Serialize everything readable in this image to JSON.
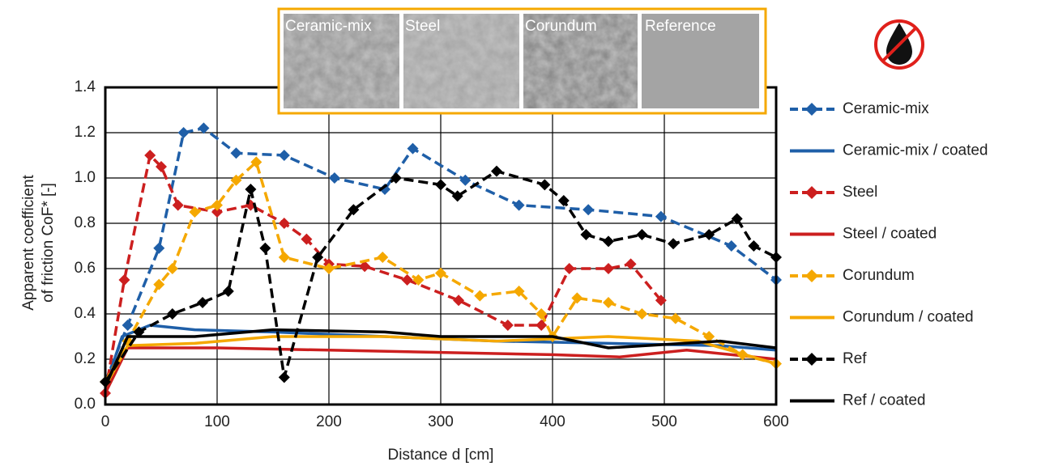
{
  "chart_data": {
    "type": "line",
    "ylabel": [
      "Apparent coefficient",
      "of friction CoF* [-]"
    ],
    "xlabel": "Distance d [cm]",
    "image_labels": [
      "Ceramic-mix",
      "Steel",
      "Corundum",
      "Reference"
    ],
    "xlim": [
      0,
      600
    ],
    "xticks": [
      0,
      100,
      200,
      300,
      400,
      500,
      600
    ],
    "ylim": [
      0,
      1.4
    ],
    "yticks": [
      {
        "value": 0,
        "label": "0.0"
      },
      0.2,
      0.4,
      0.6,
      0.8,
      {
        "value": 1,
        "label": "1.0"
      },
      1.2,
      1.4
    ],
    "grid": true,
    "series": [
      {
        "name": "Ceramic-mix",
        "color": "#1f5fa8",
        "dashed": true,
        "markers": true,
        "x": [
          0,
          20,
          48,
          70,
          88,
          117,
          160,
          205,
          250,
          275,
          322,
          370,
          432,
          497,
          560,
          600
        ],
        "values": [
          0.1,
          0.35,
          0.69,
          1.2,
          1.22,
          1.11,
          1.1,
          1.0,
          0.95,
          1.13,
          0.99,
          0.88,
          0.86,
          0.83,
          0.7,
          0.55
        ]
      },
      {
        "name": "Ceramic-mix / coated",
        "color": "#1f5fa8",
        "dashed": false,
        "markers": false,
        "x": [
          0,
          15,
          40,
          80,
          150,
          250,
          350,
          450,
          550,
          600
        ],
        "values": [
          0.08,
          0.3,
          0.35,
          0.33,
          0.32,
          0.3,
          0.28,
          0.27,
          0.26,
          0.24
        ]
      },
      {
        "name": "Steel",
        "color": "#cc1f1f",
        "dashed": true,
        "markers": true,
        "x": [
          0,
          17,
          40,
          50,
          65,
          100,
          130,
          160,
          180,
          200,
          232,
          270,
          316,
          360,
          390,
          415,
          450,
          470,
          497
        ],
        "values": [
          0.05,
          0.55,
          1.1,
          1.05,
          0.88,
          0.85,
          0.88,
          0.8,
          0.73,
          0.62,
          0.61,
          0.55,
          0.46,
          0.35,
          0.35,
          0.6,
          0.6,
          0.62,
          0.46
        ]
      },
      {
        "name": "Steel / coated",
        "color": "#cc1f1f",
        "dashed": false,
        "markers": false,
        "x": [
          0,
          20,
          100,
          200,
          300,
          400,
          460,
          520,
          600
        ],
        "values": [
          0.05,
          0.25,
          0.25,
          0.24,
          0.23,
          0.22,
          0.21,
          0.24,
          0.2
        ]
      },
      {
        "name": "Corundum",
        "color": "#f5a800",
        "dashed": true,
        "markers": true,
        "x": [
          0,
          20,
          48,
          60,
          80,
          100,
          117,
          135,
          160,
          200,
          248,
          280,
          300,
          335,
          370,
          390,
          400,
          422,
          450,
          480,
          510,
          540,
          570,
          600
        ],
        "values": [
          0.1,
          0.28,
          0.53,
          0.6,
          0.85,
          0.88,
          0.99,
          1.07,
          0.65,
          0.6,
          0.65,
          0.55,
          0.58,
          0.48,
          0.5,
          0.4,
          0.3,
          0.47,
          0.45,
          0.4,
          0.38,
          0.3,
          0.22,
          0.18
        ]
      },
      {
        "name": "Corundum / coated",
        "color": "#f5a800",
        "dashed": false,
        "markers": false,
        "x": [
          0,
          20,
          80,
          150,
          250,
          350,
          450,
          530,
          600
        ],
        "values": [
          0.08,
          0.26,
          0.27,
          0.3,
          0.3,
          0.28,
          0.3,
          0.28,
          0.18
        ]
      },
      {
        "name": "Ref",
        "color": "#000000",
        "dashed": true,
        "markers": true,
        "x": [
          0,
          30,
          60,
          87,
          110,
          130,
          143,
          160,
          190,
          222,
          260,
          300,
          315,
          350,
          393,
          410,
          430,
          450,
          480,
          508,
          540,
          565,
          580,
          600
        ],
        "values": [
          0.1,
          0.32,
          0.4,
          0.45,
          0.5,
          0.95,
          0.69,
          0.12,
          0.65,
          0.86,
          1.0,
          0.97,
          0.92,
          1.03,
          0.97,
          0.9,
          0.75,
          0.72,
          0.75,
          0.71,
          0.75,
          0.82,
          0.7,
          0.65
        ]
      },
      {
        "name": "Ref / coated",
        "color": "#000000",
        "dashed": false,
        "markers": false,
        "x": [
          0,
          20,
          80,
          150,
          250,
          300,
          400,
          450,
          550,
          600
        ],
        "values": [
          0.08,
          0.3,
          0.3,
          0.33,
          0.32,
          0.3,
          0.3,
          0.25,
          0.28,
          0.25
        ]
      }
    ]
  }
}
